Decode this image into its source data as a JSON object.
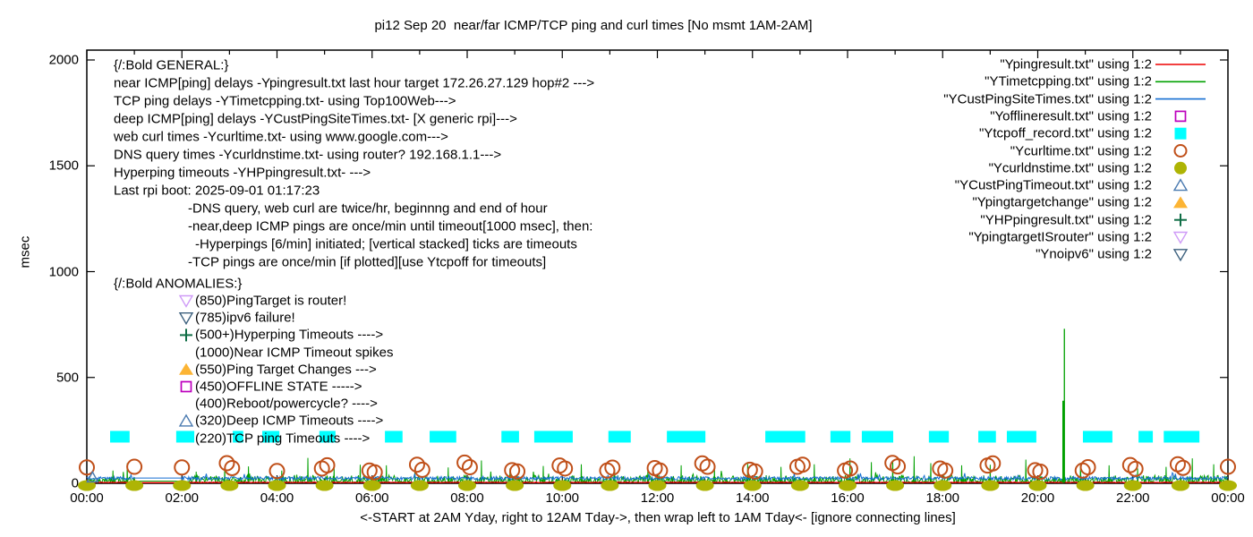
{
  "title": "pi12 Sep 20  near/far ICMP/TCP ping and curl times [No msmt 1AM-2AM]",
  "axes": {
    "ylabel": "msec",
    "xlabel": "<-START at 2AM Yday, right to 12AM Tday->, then wrap left to 1AM Tday<- [ignore connecting lines]",
    "y_tick_labels": [
      "0",
      "500",
      "1000",
      "1500",
      "2000"
    ],
    "x_tick_labels": [
      "00:00",
      "02:00",
      "04:00",
      "06:00",
      "08:00",
      "10:00",
      "12:00",
      "14:00",
      "16:00",
      "18:00",
      "20:00",
      "22:00",
      "00:00"
    ]
  },
  "legend": {
    "items": [
      {
        "label": "\"Ypingresult.txt\" using 1:2",
        "marker": "line",
        "color": "#ee0000"
      },
      {
        "label": "\"YTimetcpping.txt\" using 1:2",
        "marker": "line",
        "color": "#00a000"
      },
      {
        "label": "\"YCustPingSiteTimes.txt\" using 1:2",
        "marker": "line",
        "color": "#146ed2"
      },
      {
        "label": "\"Yofflineresult.txt\" using 1:2",
        "marker": "square-open",
        "color": "#bd00bd"
      },
      {
        "label": "\"Ytcpoff_record.txt\" using 1:2",
        "marker": "square-filled",
        "color": "#00ffff"
      },
      {
        "label": "\"Ycurltime.txt\" using 1:2",
        "marker": "circle-open",
        "color": "#c0501a"
      },
      {
        "label": "\"Ycurldnstime.txt\" using 1:2",
        "marker": "circle-filled",
        "color": "#aeb404"
      },
      {
        "label": "\"YCustPingTimeout.txt\" using 1:2",
        "marker": "triangle-up-open",
        "color": "#4a7ab0"
      },
      {
        "label": "\"Ypingtargetchange\" using 1:2",
        "marker": "triangle-up-filled",
        "color": "#fcb434"
      },
      {
        "label": "\"YHPpingresult.txt\" using 1:2",
        "marker": "plus",
        "color": "#106e46"
      },
      {
        "label": "\"YpingtargetISrouter\" using 1:2",
        "marker": "triangle-down-open",
        "color": "#cf9bf7"
      },
      {
        "label": "\"Ynoipv6\" using 1:2",
        "marker": "triangle-down-open",
        "color": "#3d617e"
      }
    ]
  },
  "general_block": {
    "lines": [
      {
        "text": "{/:Bold GENERAL:}",
        "indent": 0
      },
      {
        "text": "near ICMP[ping] delays -Ypingresult.txt last hour target 172.26.27.129 hop#2 --->",
        "indent": 0
      },
      {
        "text": "TCP ping delays -YTimetcpping.txt- using Top100Web--->",
        "indent": 0
      },
      {
        "text": "deep ICMP[ping] delays -YCustPingSiteTimes.txt- [X generic rpi]--->",
        "indent": 0
      },
      {
        "text": "web curl times -Ycurltime.txt- using www.google.com--->",
        "indent": 0
      },
      {
        "text": "DNS query times -Ycurldnstime.txt- using router? 192.168.1.1--->",
        "indent": 0
      },
      {
        "text": "Hyperping timeouts -YHPpingresult.txt- --->",
        "indent": 0
      },
      {
        "text": "Last rpi boot: 2025-09-01 01:17:23",
        "indent": 0
      },
      {
        "text": "-DNS query, web curl are twice/hr, beginnng and end of hour",
        "indent": 83
      },
      {
        "text": "-near,deep ICMP pings are once/min until timeout[1000 msec], then:",
        "indent": 83
      },
      {
        "text": "-Hyperpings [6/min] initiated; [vertical stacked] ticks are timeouts",
        "indent": 91
      },
      {
        "text": "-TCP pings are once/min [if plotted][use Ytcpoff for timeouts]",
        "indent": 83
      }
    ]
  },
  "anomalies_block": {
    "header": "{/:Bold ANOMALIES:}",
    "rows": [
      {
        "marker": "triangle-down-open",
        "color": "#cf9bf7",
        "text": "(850)PingTarget is router!"
      },
      {
        "marker": "triangle-down-open",
        "color": "#3d617e",
        "text": "(785)ipv6 failure!"
      },
      {
        "marker": "plus",
        "color": "#106e46",
        "text": "(500+)Hyperping Timeouts ---->"
      },
      {
        "marker": "none",
        "color": "",
        "text": "(1000)Near ICMP Timeout spikes"
      },
      {
        "marker": "triangle-up-filled",
        "color": "#fcb434",
        "text": "(550)Ping Target Changes --->"
      },
      {
        "marker": "square-open",
        "color": "#bd00bd",
        "text": "(450)OFFLINE STATE ----->"
      },
      {
        "marker": "none",
        "color": "",
        "text": "(400)Reboot/powercycle? ---->"
      },
      {
        "marker": "triangle-up-open",
        "color": "#4a7ab0",
        "text": "(320)Deep ICMP Timeouts ---->"
      },
      {
        "marker": "none",
        "color": "",
        "text": "(220)TCP ping Timeouts ---->"
      }
    ]
  },
  "chart_data": {
    "type": "line",
    "title": "pi12 Sep 20  near/far ICMP/TCP ping and curl times [No msmt 1AM-2AM]",
    "ylabel": "msec",
    "xlabel": "<-START at 2AM Yday, right to 12AM Tday->, then wrap left to 1AM Tday<- [ignore connecting lines]",
    "ylim": [
      0,
      2050
    ],
    "x_hours": [
      0,
      24
    ],
    "y_ticks": [
      0,
      500,
      1000,
      1500,
      2000
    ],
    "grid": false,
    "legend_position": "top-right-inside",
    "series_lines": [
      {
        "name": "Ypingresult.txt",
        "color": "#ee0000",
        "baseline_msec": 3,
        "noise_msec": 2.5
      },
      {
        "name": "YTimetcpping.txt",
        "color": "#00a000",
        "baseline_msec": 4,
        "noise_msec": 34
      },
      {
        "name": "YCustPingSiteTimes.txt",
        "color": "#146ed2",
        "baseline_msec": 16,
        "noise_msec": 16
      }
    ],
    "no_msmt_gap_hours": [
      1,
      2
    ],
    "gap_values_msec": {
      "green": 10,
      "blue": 25,
      "red": 3
    },
    "green_spikes": [
      [
        0.55,
        60
      ],
      [
        0.85,
        95
      ],
      [
        2.3,
        55
      ],
      [
        2.9,
        75
      ],
      [
        3.4,
        80
      ],
      [
        4.1,
        60
      ],
      [
        4.65,
        120
      ],
      [
        5.2,
        70
      ],
      [
        5.75,
        88
      ],
      [
        6.3,
        85
      ],
      [
        6.9,
        60
      ],
      [
        7.6,
        75
      ],
      [
        8.3,
        108
      ],
      [
        8.9,
        70
      ],
      [
        9.6,
        82
      ],
      [
        10.4,
        90
      ],
      [
        11.1,
        65
      ],
      [
        11.8,
        75
      ],
      [
        12.5,
        85
      ],
      [
        13.2,
        70
      ],
      [
        13.9,
        92
      ],
      [
        14.6,
        78
      ],
      [
        15.3,
        90
      ],
      [
        16.05,
        118
      ],
      [
        16.5,
        100
      ],
      [
        16.95,
        108
      ],
      [
        17.4,
        128
      ],
      [
        17.75,
        95
      ],
      [
        18.4,
        85
      ],
      [
        19.0,
        88
      ],
      [
        19.75,
        112
      ],
      [
        20.9,
        95
      ],
      [
        21.5,
        85
      ],
      [
        22.1,
        70
      ],
      [
        22.7,
        78
      ],
      [
        23.25,
        118
      ],
      [
        23.7,
        90
      ]
    ],
    "big_spike": {
      "hour": 20.56,
      "peak_msec": 730,
      "secondary_msec": 390
    },
    "curl_circles_msec_by_hour": [
      [
        75,
        null
      ],
      [
        78,
        null
      ],
      [
        75,
        null
      ],
      [
        95,
        72
      ],
      [
        58,
        null
      ],
      [
        70,
        85
      ],
      [
        60,
        52
      ],
      [
        88,
        64
      ],
      [
        98,
        76
      ],
      [
        62,
        56
      ],
      [
        84,
        70
      ],
      [
        60,
        74
      ],
      [
        72,
        60
      ],
      [
        94,
        78
      ],
      [
        64,
        56
      ],
      [
        78,
        88
      ],
      [
        60,
        70
      ],
      [
        96,
        80
      ],
      [
        70,
        60
      ],
      [
        84,
        94
      ],
      [
        62,
        55
      ],
      [
        60,
        76
      ],
      [
        86,
        68
      ],
      [
        90,
        73
      ],
      [
        78,
        null
      ]
    ],
    "dns_points": {
      "hours_step": 1,
      "value_msec": 2
    },
    "tcpoff_value_msec": 220,
    "tcpoff_squares_hours": [
      [
        0.49,
        0.41
      ],
      [
        1.88,
        0.38
      ],
      [
        3.07,
        0.22
      ],
      [
        3.69,
        0.36
      ],
      [
        4.89,
        0.34
      ],
      [
        6.27,
        0.37
      ],
      [
        7.21,
        0.56
      ],
      [
        8.72,
        0.37
      ],
      [
        9.41,
        0.81
      ],
      [
        10.97,
        0.47
      ],
      [
        12.2,
        0.81
      ],
      [
        14.27,
        0.84
      ],
      [
        15.64,
        0.42
      ],
      [
        16.3,
        0.66
      ],
      [
        17.71,
        0.42
      ],
      [
        18.75,
        0.37
      ],
      [
        19.35,
        0.62
      ],
      [
        20.95,
        0.62
      ],
      [
        22.12,
        0.3
      ],
      [
        22.65,
        0.75
      ]
    ],
    "cust_ping_timeout_points": [
      [
        0.12,
        28
      ]
    ],
    "seed": 1337
  }
}
